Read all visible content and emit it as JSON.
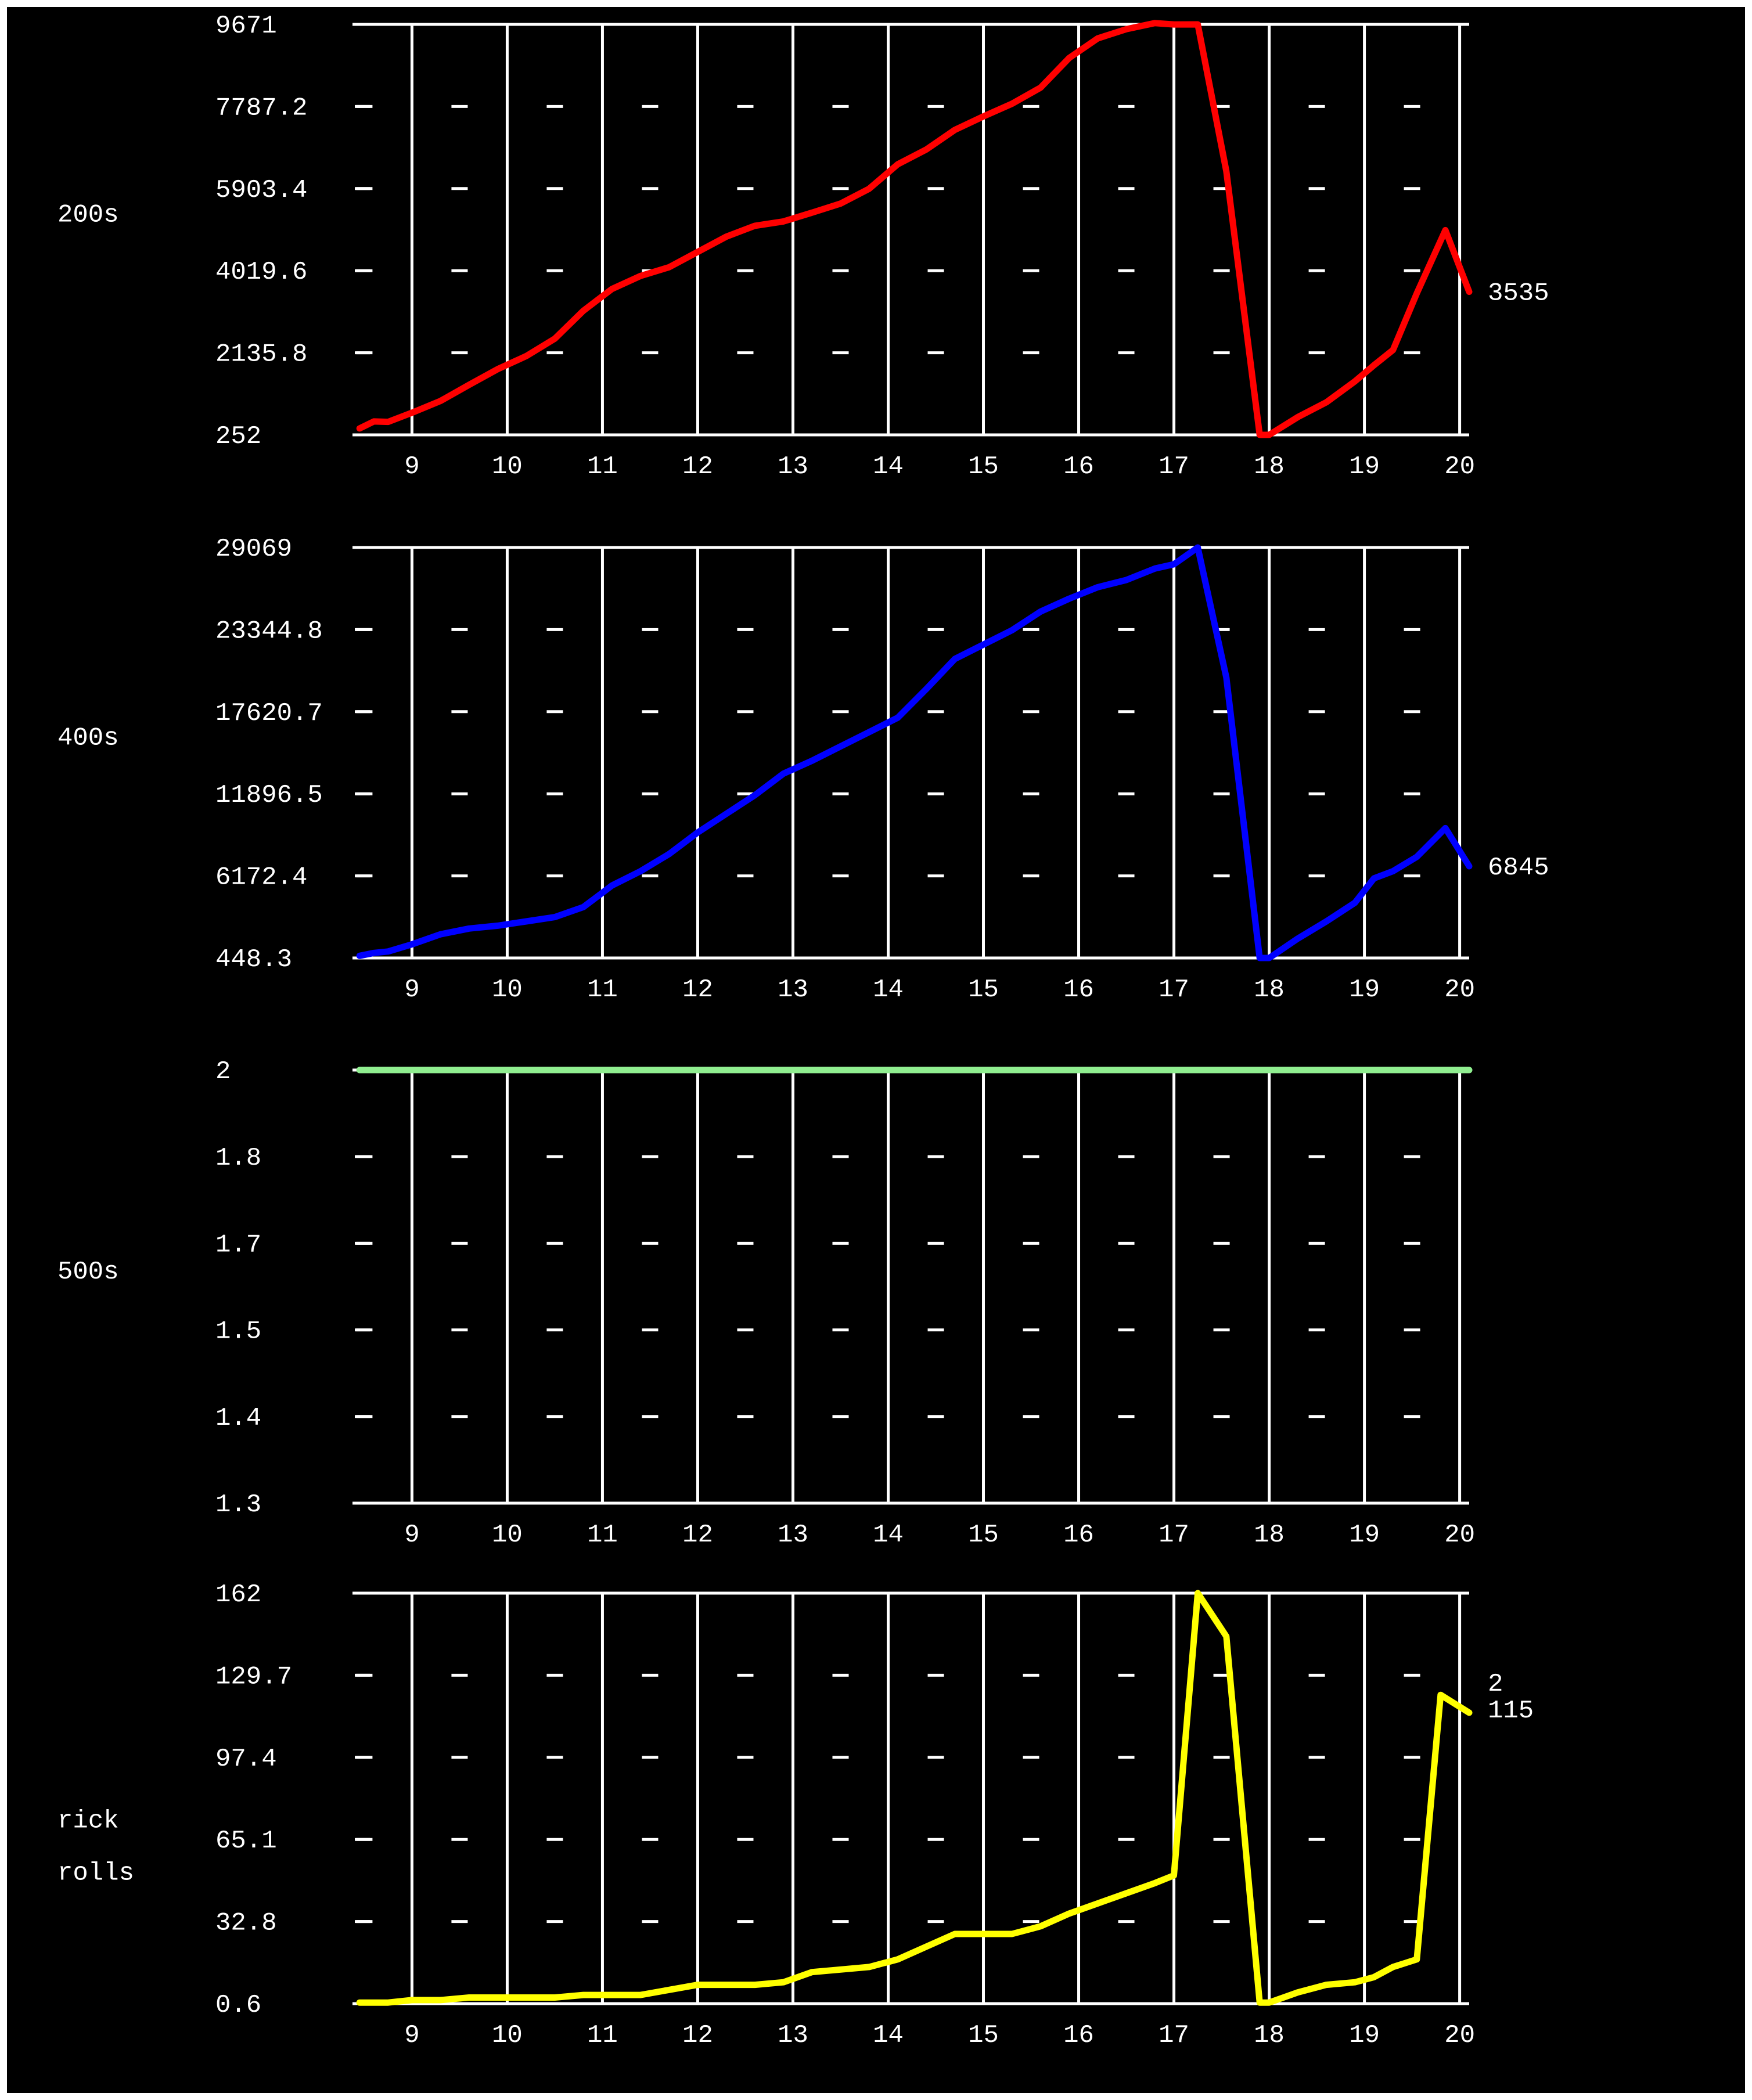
{
  "chart_data": [
    {
      "type": "line",
      "series_label": "200s",
      "color": "#ff0000",
      "ytick_labels": [
        "9671",
        "7787.2",
        "5903.4",
        "4019.6",
        "2135.8",
        "252"
      ],
      "ylim": [
        252,
        9671
      ],
      "xlim": [
        8.4,
        20.1
      ],
      "xticks": [
        "9",
        "10",
        "11",
        "12",
        "13",
        "14",
        "15",
        "16",
        "17",
        "18",
        "19",
        "20"
      ],
      "last_value_label": "3535",
      "x": [
        8.45,
        8.6,
        8.75,
        9.0,
        9.3,
        9.6,
        9.9,
        10.2,
        10.5,
        10.8,
        11.1,
        11.4,
        11.7,
        12.0,
        12.3,
        12.6,
        12.9,
        13.2,
        13.5,
        13.8,
        14.1,
        14.4,
        14.7,
        15.0,
        15.3,
        15.6,
        15.9,
        16.2,
        16.5,
        16.8,
        17.0,
        17.25,
        17.55,
        17.9,
        18.0,
        18.3,
        18.6,
        18.9,
        19.1,
        19.3,
        19.55,
        19.85,
        20.1
      ],
      "values": [
        400,
        560,
        550,
        760,
        1030,
        1400,
        1760,
        2060,
        2460,
        3100,
        3600,
        3900,
        4100,
        4450,
        4800,
        5050,
        5150,
        5350,
        5560,
        5900,
        6460,
        6800,
        7250,
        7560,
        7850,
        8220,
        8900,
        9350,
        9560,
        9700,
        9670,
        9671,
        6300,
        252,
        252,
        660,
        1000,
        1480,
        1850,
        2200,
        3500,
        4950,
        3535
      ]
    },
    {
      "type": "line",
      "series_label": "400s",
      "color": "#0000ff",
      "ytick_labels": [
        "29069",
        "23344.8",
        "17620.7",
        "11896.5",
        "6172.4",
        "448.3"
      ],
      "ylim": [
        448.3,
        29069
      ],
      "xlim": [
        8.4,
        20.1
      ],
      "xticks": [
        "9",
        "10",
        "11",
        "12",
        "13",
        "14",
        "15",
        "16",
        "17",
        "18",
        "19",
        "20"
      ],
      "last_value_label": "6845",
      "x": [
        8.45,
        8.6,
        8.75,
        9.0,
        9.3,
        9.6,
        9.9,
        10.2,
        10.5,
        10.8,
        11.1,
        11.4,
        11.7,
        12.0,
        12.3,
        12.6,
        12.9,
        13.2,
        13.5,
        13.8,
        14.1,
        14.4,
        14.7,
        15.0,
        15.3,
        15.6,
        15.9,
        16.2,
        16.5,
        16.8,
        17.0,
        17.25,
        17.55,
        17.9,
        18.0,
        18.3,
        18.6,
        18.9,
        19.1,
        19.3,
        19.55,
        19.85,
        20.1
      ],
      "values": [
        600,
        800,
        900,
        1400,
        2100,
        2500,
        2700,
        3000,
        3300,
        4000,
        5500,
        6500,
        7700,
        9200,
        10500,
        11800,
        13300,
        14200,
        15200,
        16200,
        17200,
        19200,
        21300,
        22300,
        23300,
        24600,
        25500,
        26300,
        26800,
        27600,
        27900,
        29069,
        20000,
        448.3,
        448.3,
        1800,
        3000,
        4300,
        6000,
        6500,
        7500,
        9500,
        6845
      ]
    },
    {
      "type": "line",
      "series_label": "500s",
      "color": "#90ee90",
      "ytick_labels": [
        "2",
        "1.8",
        "1.7",
        "1.5",
        "1.4",
        "1.3"
      ],
      "ylim": [
        1.3,
        2
      ],
      "xlim": [
        8.4,
        20.1
      ],
      "xticks": [
        "9",
        "10",
        "11",
        "12",
        "13",
        "14",
        "15",
        "16",
        "17",
        "18",
        "19",
        "20"
      ],
      "last_value_label": "",
      "x": [
        8.45,
        20.1
      ],
      "values": [
        2,
        2
      ]
    },
    {
      "type": "line",
      "series_label_lines": [
        "rick",
        "rolls"
      ],
      "color": "#ffff00",
      "ytick_labels": [
        "162",
        "129.7",
        "97.4",
        "65.1",
        "32.8",
        "0.6"
      ],
      "ylim": [
        0.6,
        162
      ],
      "xlim": [
        8.4,
        20.1
      ],
      "xticks": [
        "9",
        "10",
        "11",
        "12",
        "13",
        "14",
        "15",
        "16",
        "17",
        "18",
        "19",
        "20"
      ],
      "last_value_label_lines": [
        "2",
        "115"
      ],
      "x": [
        8.45,
        8.6,
        8.75,
        9.0,
        9.3,
        9.6,
        9.9,
        10.2,
        10.5,
        10.8,
        11.1,
        11.4,
        11.7,
        12.0,
        12.3,
        12.6,
        12.9,
        13.2,
        13.5,
        13.8,
        14.1,
        14.4,
        14.7,
        15.0,
        15.3,
        15.6,
        15.9,
        16.2,
        16.5,
        16.8,
        17.0,
        17.25,
        17.55,
        17.9,
        18.0,
        18.3,
        18.6,
        18.9,
        19.1,
        19.3,
        19.55,
        19.8,
        20.1
      ],
      "values": [
        1,
        1,
        1,
        2,
        2,
        3,
        3,
        3,
        3,
        4,
        4,
        4,
        6,
        8,
        8,
        8,
        9,
        13,
        14,
        15,
        18,
        23,
        28,
        28,
        28,
        31,
        36,
        40,
        44,
        48,
        51,
        162,
        145,
        1,
        1,
        5,
        8,
        9,
        11,
        15,
        18,
        122,
        115
      ]
    }
  ]
}
